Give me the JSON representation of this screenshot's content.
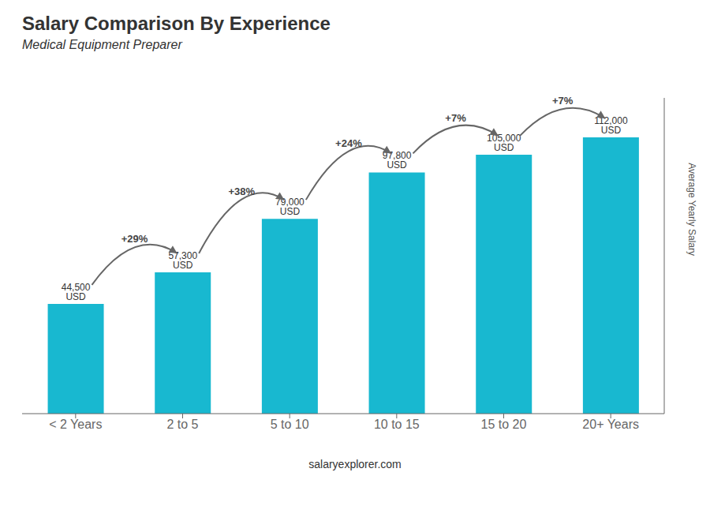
{
  "chart_data": {
    "type": "bar",
    "title": "Salary Comparison By Experience",
    "subtitle": "Medical Equipment Preparer",
    "categories": [
      "< 2 Years",
      "2 to 5",
      "5 to 10",
      "10 to 15",
      "15 to 20",
      "20+ Years"
    ],
    "values": [
      44500,
      57300,
      79000,
      97800,
      105000,
      112000
    ],
    "value_labels": [
      "44,500 USD",
      "57,300 USD",
      "79,000 USD",
      "97,800 USD",
      "105,000 USD",
      "112,000 USD"
    ],
    "data_labels": true,
    "color": "#18b8d0",
    "ylim": [
      0,
      128000
    ],
    "yticks": [],
    "tick_labels": "x",
    "grid": false,
    "y_label": "Average Yearly Salary",
    "annotations": [
      {
        "text": "+29%",
        "between": [
          "< 2 Years",
          "2 to 5"
        ]
      },
      {
        "text": "+38%",
        "between": [
          "2 to 5",
          "5 to 10"
        ]
      },
      {
        "text": "+24%",
        "between": [
          "5 to 10",
          "10 to 15"
        ]
      },
      {
        "text": "+7%",
        "between": [
          "10 to 15",
          "15 to 20"
        ]
      },
      {
        "text": "+7%",
        "between": [
          "15 to 20",
          "20+ Years"
        ]
      }
    ],
    "footer": "salaryexplorer.com"
  }
}
